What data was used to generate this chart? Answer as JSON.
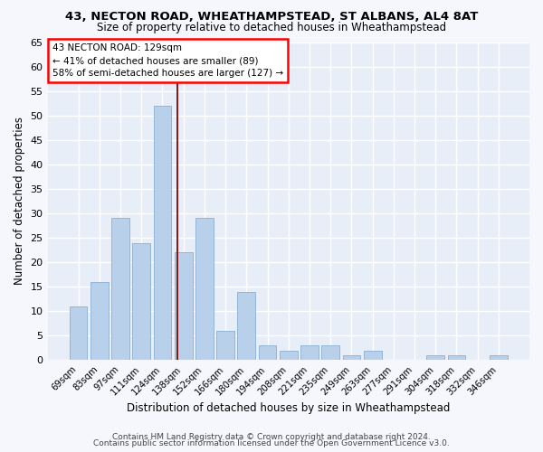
{
  "title1": "43, NECTON ROAD, WHEATHAMPSTEAD, ST ALBANS, AL4 8AT",
  "title2": "Size of property relative to detached houses in Wheathampstead",
  "xlabel": "Distribution of detached houses by size in Wheathampstead",
  "ylabel": "Number of detached properties",
  "categories": [
    "69sqm",
    "83sqm",
    "97sqm",
    "111sqm",
    "124sqm",
    "138sqm",
    "152sqm",
    "166sqm",
    "180sqm",
    "194sqm",
    "208sqm",
    "221sqm",
    "235sqm",
    "249sqm",
    "263sqm",
    "277sqm",
    "291sqm",
    "304sqm",
    "318sqm",
    "332sqm",
    "346sqm"
  ],
  "values": [
    11,
    16,
    29,
    24,
    52,
    22,
    29,
    6,
    14,
    3,
    2,
    3,
    3,
    1,
    2,
    0,
    0,
    1,
    1,
    0,
    1
  ],
  "bar_color": "#b8d0ea",
  "bar_edge_color": "#89afd4",
  "bg_color": "#e8eef8",
  "grid_color": "#ffffff",
  "red_line_x": 4.71,
  "annotation_line1": "43 NECTON ROAD: 129sqm",
  "annotation_line2": "← 41% of detached houses are smaller (89)",
  "annotation_line3": "58% of semi-detached houses are larger (127) →",
  "footer1": "Contains HM Land Registry data © Crown copyright and database right 2024.",
  "footer2": "Contains public sector information licensed under the Open Government Licence v3.0.",
  "ylim": [
    0,
    65
  ],
  "yticks": [
    0,
    5,
    10,
    15,
    20,
    25,
    30,
    35,
    40,
    45,
    50,
    55,
    60,
    65
  ],
  "fig_bg": "#f5f7fc"
}
